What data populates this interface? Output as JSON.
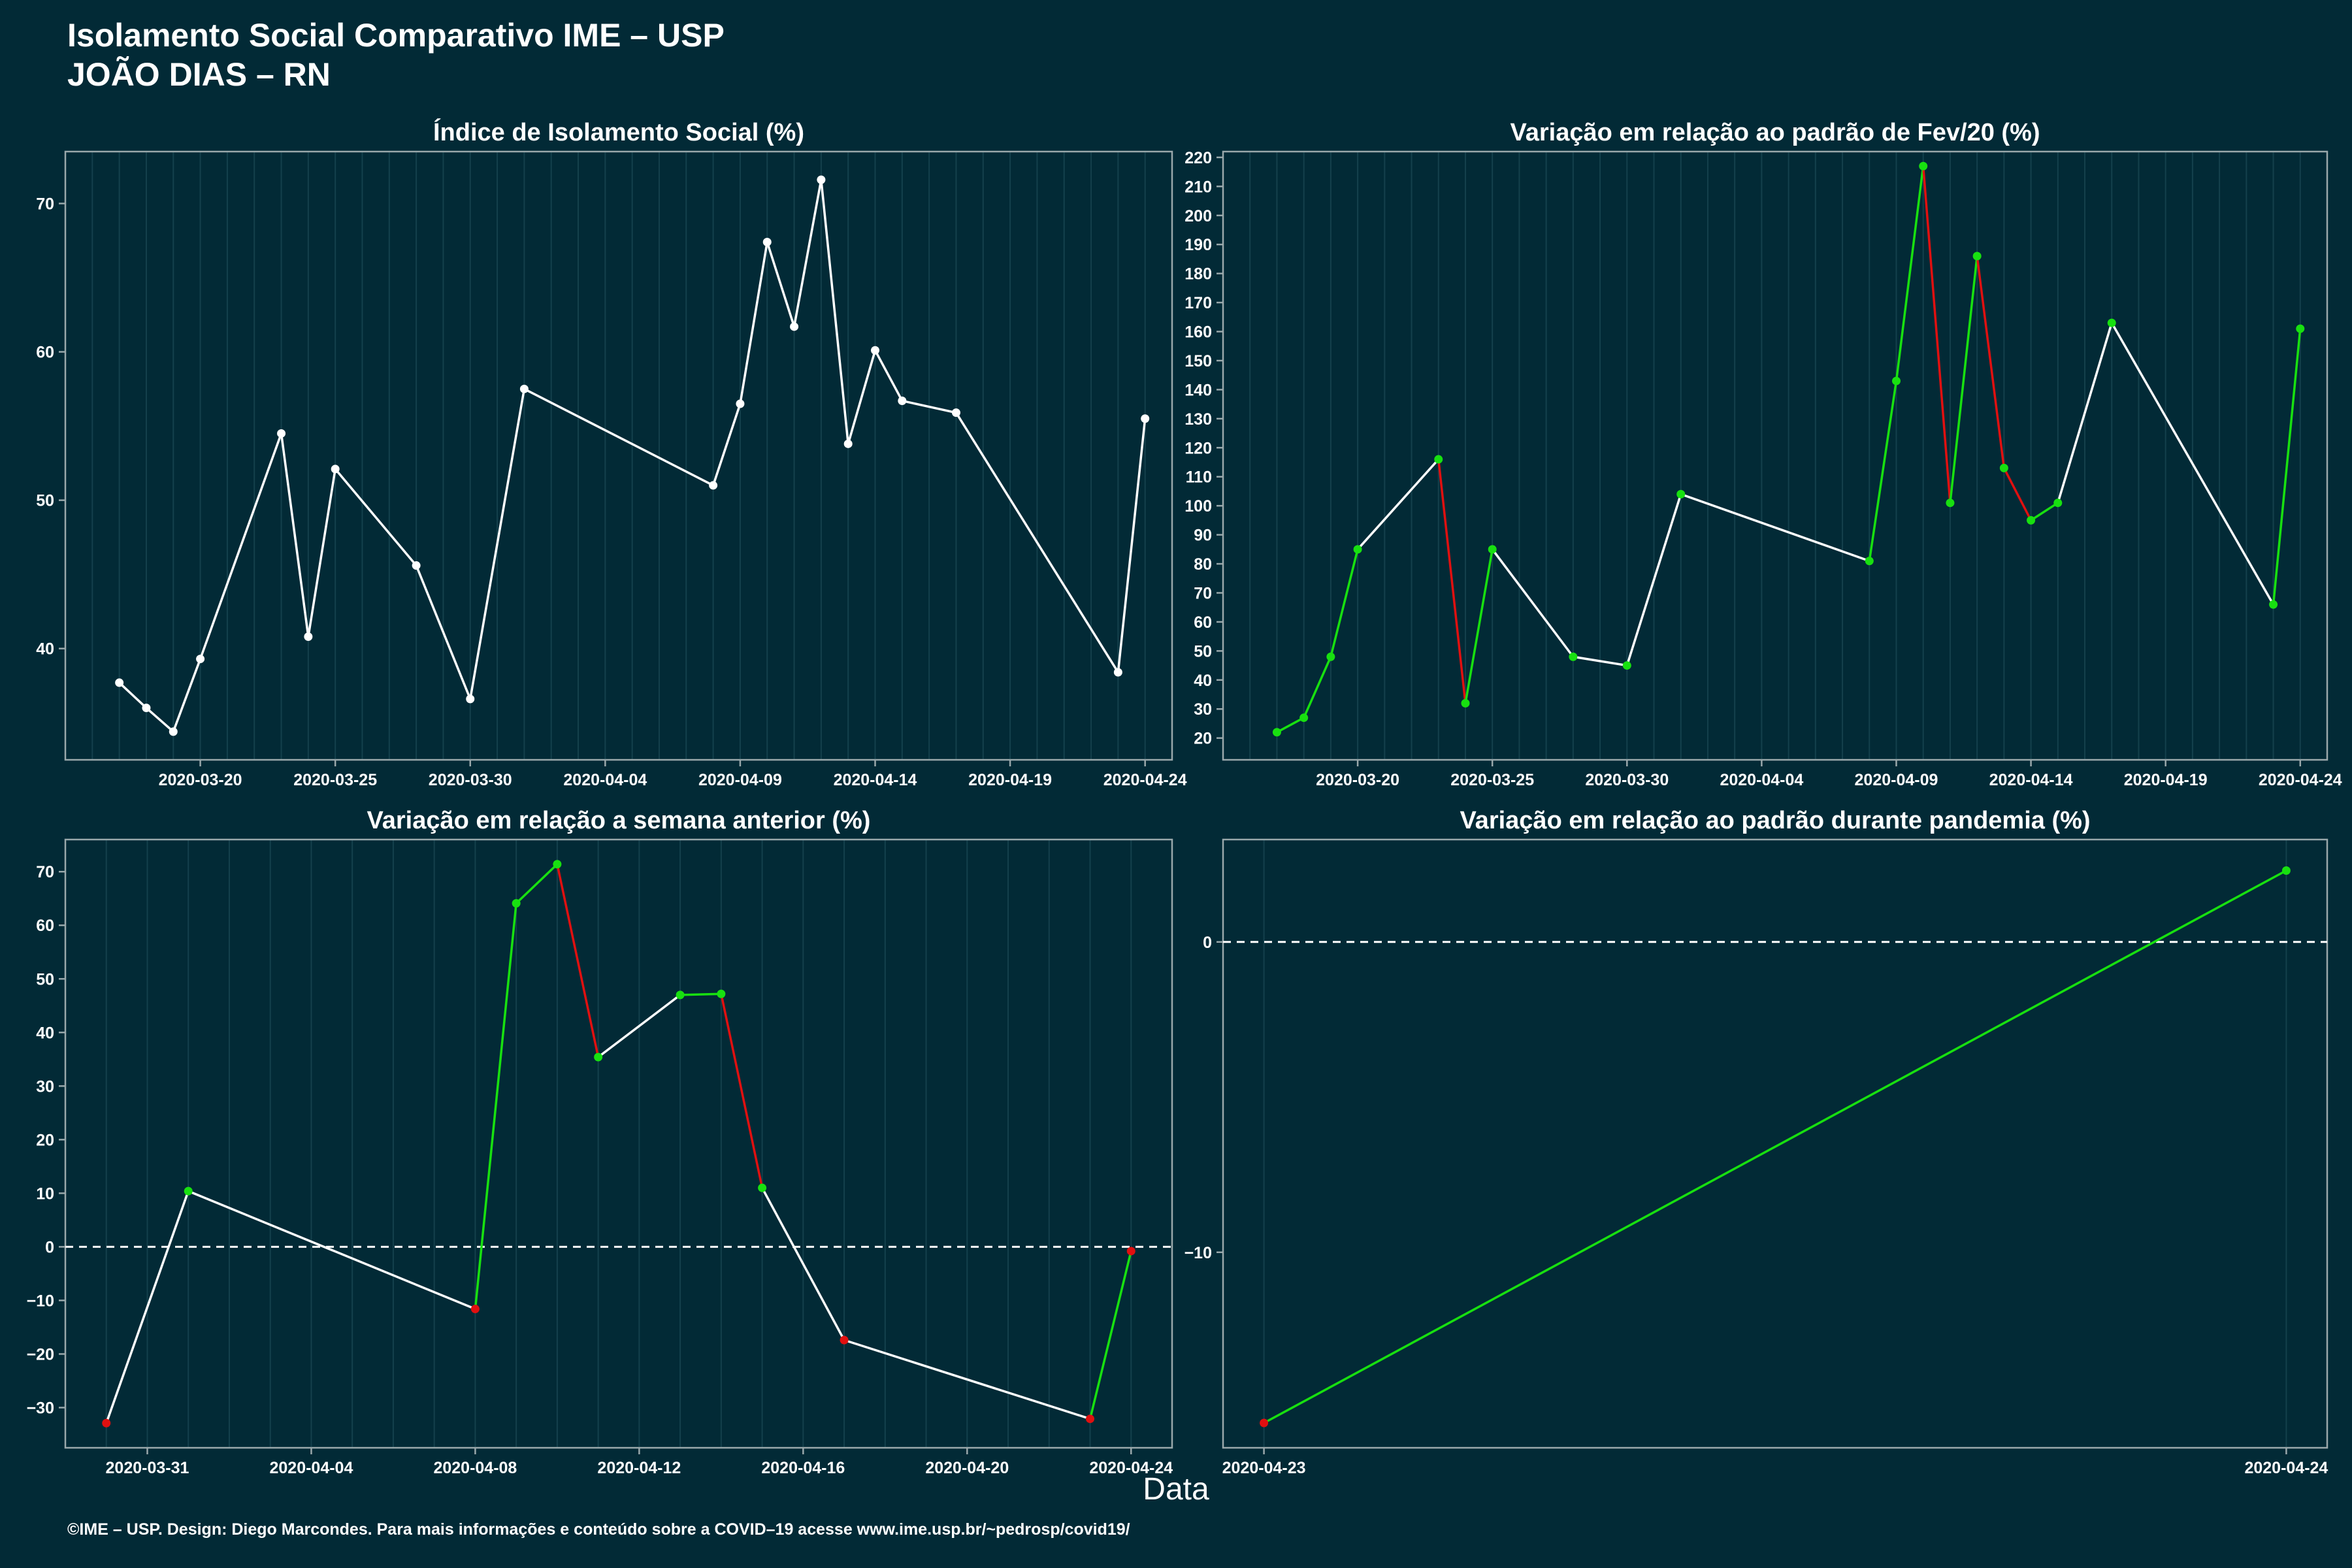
{
  "title": [
    "Isolamento Social Comparativo IME – USP",
    "JOÃO DIAS – RN"
  ],
  "xlabel": "Data",
  "footer": "©IME – USP. Design: Diego Marcondes. Para mais informações e conteúdo sobre a COVID–19 acesse www.ime.usp.br/~pedrosp/covid19/",
  "colors": {
    "background": "#022a36",
    "line": "#ffffff",
    "up": "#18e010",
    "down": "#e01010",
    "grid": "#14404c",
    "border": "#9aa8ab"
  },
  "chart_data": [
    {
      "type": "line",
      "title": "Índice de Isolamento Social (%)",
      "xlim": [
        "2020-03-15",
        "2020-04-25"
      ],
      "ylim": [
        32.5,
        73.5
      ],
      "xticks": [
        "2020-03-20",
        "2020-03-25",
        "2020-03-30",
        "2020-04-04",
        "2020-04-09",
        "2020-04-14",
        "2020-04-19",
        "2020-04-24"
      ],
      "yticks": [
        40,
        50,
        60,
        70
      ],
      "points": [
        {
          "x": "2020-03-17",
          "y": 37.7
        },
        {
          "x": "2020-03-18",
          "y": 36.0
        },
        {
          "x": "2020-03-19",
          "y": 34.4
        },
        {
          "x": "2020-03-20",
          "y": 39.3
        },
        {
          "x": "2020-03-23",
          "y": 54.5
        },
        {
          "x": "2020-03-24",
          "y": 40.8
        },
        {
          "x": "2020-03-25",
          "y": 52.1
        },
        {
          "x": "2020-03-28",
          "y": 45.6
        },
        {
          "x": "2020-03-30",
          "y": 36.6
        },
        {
          "x": "2020-04-01",
          "y": 57.5
        },
        {
          "x": "2020-04-08",
          "y": 51.0
        },
        {
          "x": "2020-04-09",
          "y": 56.5
        },
        {
          "x": "2020-04-10",
          "y": 67.4
        },
        {
          "x": "2020-04-11",
          "y": 61.7
        },
        {
          "x": "2020-04-12",
          "y": 71.6
        },
        {
          "x": "2020-04-13",
          "y": 53.8
        },
        {
          "x": "2020-04-14",
          "y": 60.1
        },
        {
          "x": "2020-04-15",
          "y": 56.7
        },
        {
          "x": "2020-04-17",
          "y": 55.9
        },
        {
          "x": "2020-04-23",
          "y": 38.4
        },
        {
          "x": "2020-04-24",
          "y": 55.5
        }
      ]
    },
    {
      "type": "line",
      "title": "Variação em relação ao padrão de Fev/20 (%)",
      "xlim": [
        "2020-03-15",
        "2020-04-25"
      ],
      "ylim": [
        12.5,
        222
      ],
      "xticks": [
        "2020-03-20",
        "2020-03-25",
        "2020-03-30",
        "2020-04-04",
        "2020-04-09",
        "2020-04-14",
        "2020-04-19",
        "2020-04-24"
      ],
      "yticks": [
        20,
        30,
        40,
        50,
        60,
        70,
        80,
        90,
        100,
        110,
        120,
        130,
        140,
        150,
        160,
        170,
        180,
        190,
        200,
        210,
        220
      ],
      "points": [
        {
          "x": "2020-03-17",
          "y": 22
        },
        {
          "x": "2020-03-18",
          "y": 27
        },
        {
          "x": "2020-03-19",
          "y": 48
        },
        {
          "x": "2020-03-20",
          "y": 85
        },
        {
          "x": "2020-03-23",
          "y": 116
        },
        {
          "x": "2020-03-24",
          "y": 32
        },
        {
          "x": "2020-03-25",
          "y": 85
        },
        {
          "x": "2020-03-28",
          "y": 48
        },
        {
          "x": "2020-03-30",
          "y": 45
        },
        {
          "x": "2020-04-01",
          "y": 104
        },
        {
          "x": "2020-04-08",
          "y": 81
        },
        {
          "x": "2020-04-09",
          "y": 143
        },
        {
          "x": "2020-04-10",
          "y": 217
        },
        {
          "x": "2020-04-11",
          "y": 101
        },
        {
          "x": "2020-04-12",
          "y": 186
        },
        {
          "x": "2020-04-13",
          "y": 113
        },
        {
          "x": "2020-04-14",
          "y": 95
        },
        {
          "x": "2020-04-15",
          "y": 101
        },
        {
          "x": "2020-04-17",
          "y": 163
        },
        {
          "x": "2020-04-23",
          "y": 66
        },
        {
          "x": "2020-04-24",
          "y": 161
        }
      ]
    },
    {
      "type": "line",
      "title": "Variação em relação a semana anterior (%)",
      "xlim": [
        "2020-03-29",
        "2020-04-25"
      ],
      "ylim": [
        -37.5,
        76
      ],
      "zero_line": true,
      "xticks": [
        "2020-03-31",
        "2020-04-04",
        "2020-04-08",
        "2020-04-12",
        "2020-04-16",
        "2020-04-20",
        "2020-04-24"
      ],
      "yticks": [
        -30,
        -20,
        -10,
        0,
        10,
        20,
        30,
        40,
        50,
        60,
        70
      ],
      "points": [
        {
          "x": "2020-03-30",
          "y": -32.9
        },
        {
          "x": "2020-04-01",
          "y": 10.4
        },
        {
          "x": "2020-04-08",
          "y": -11.6
        },
        {
          "x": "2020-04-09",
          "y": 64.1
        },
        {
          "x": "2020-04-10",
          "y": 71.4
        },
        {
          "x": "2020-04-11",
          "y": 35.4
        },
        {
          "x": "2020-04-13",
          "y": 47.0
        },
        {
          "x": "2020-04-14",
          "y": 47.2
        },
        {
          "x": "2020-04-15",
          "y": 11.0
        },
        {
          "x": "2020-04-17",
          "y": -17.4
        },
        {
          "x": "2020-04-23",
          "y": -32.1
        },
        {
          "x": "2020-04-24",
          "y": -0.8
        }
      ]
    },
    {
      "type": "line",
      "title": "Variação em relação ao padrão durante pandemia (%)",
      "xlim": [
        "2020-04-22.96",
        "2020-04-24.04"
      ],
      "ylim": [
        -16.3,
        3.3
      ],
      "zero_line": true,
      "xticks": [
        "2020-04-23",
        "2020-04-24"
      ],
      "yticks": [
        -10,
        0
      ],
      "points": [
        {
          "x": "2020-04-23",
          "y": -15.5
        },
        {
          "x": "2020-04-24",
          "y": 2.3
        }
      ]
    }
  ]
}
